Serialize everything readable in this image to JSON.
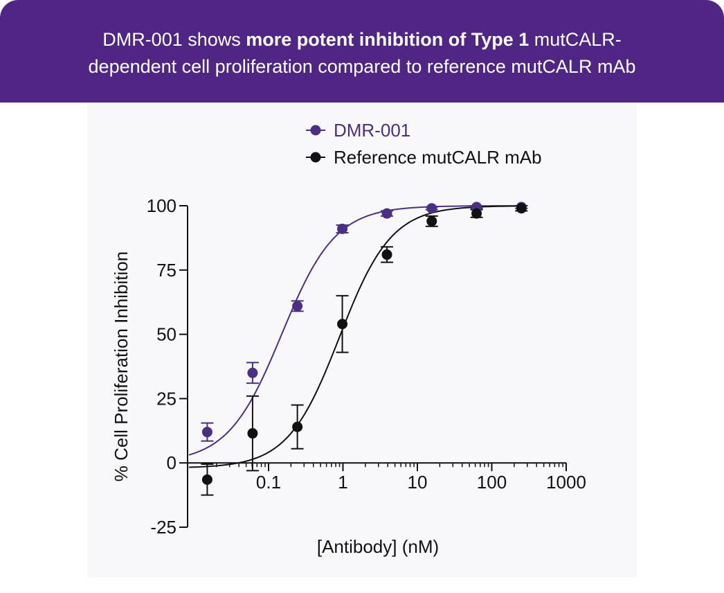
{
  "header": {
    "title_line1_pre": "DMR-001 shows ",
    "title_line1_bold": "more potent inhibition of Type 1",
    "title_line1_post": " mutCALR-",
    "title_line2": "dependent cell proliferation compared to reference mutCALR mAb"
  },
  "colors": {
    "header_bg": "#4f2683",
    "dmr001": "#4b2f83",
    "reference": "#111111"
  },
  "chart_data": {
    "type": "scatter",
    "xlabel": "[Antibody] (nM)",
    "ylabel": "% Cell Proliferation Inhibition",
    "x_scale": "log",
    "xlim": [
      0.012,
      1000
    ],
    "ylim": [
      -25,
      100
    ],
    "xticks": [
      0.1,
      1,
      10,
      100,
      1000
    ],
    "xtick_labels": [
      "0.1",
      "1",
      "10",
      "100",
      "1000"
    ],
    "yticks": [
      -25,
      0,
      25,
      50,
      75,
      100
    ],
    "ytick_labels": [
      "-25",
      "0",
      "25",
      "50",
      "75",
      "100"
    ],
    "grid": false,
    "legend_position": "top-center",
    "series": [
      {
        "name": "DMR-001",
        "color": "#4b2f83",
        "x": [
          0.015,
          0.061,
          0.244,
          0.98,
          3.9,
          15.6,
          62.5,
          250
        ],
        "y": [
          12,
          35,
          61,
          91,
          97,
          99,
          99.5,
          99.5
        ],
        "error": [
          3.5,
          4,
          2,
          1.5,
          1,
          0.5,
          0.5,
          0.5
        ],
        "fit": {
          "bottom": 0,
          "top": 100,
          "ec50": 0.15,
          "hill": 1.2
        }
      },
      {
        "name": "Reference mutCALR mAb",
        "color": "#111111",
        "x": [
          0.015,
          0.061,
          0.244,
          0.98,
          3.9,
          15.6,
          62.5,
          250
        ],
        "y": [
          -6.5,
          11.5,
          14,
          54,
          81,
          94,
          97,
          99
        ],
        "error": [
          6,
          14.5,
          8.5,
          11,
          3,
          2,
          1.5,
          1
        ],
        "fit": {
          "bottom": -2,
          "top": 100,
          "ec50": 0.9,
          "hill": 1.25
        }
      }
    ]
  }
}
